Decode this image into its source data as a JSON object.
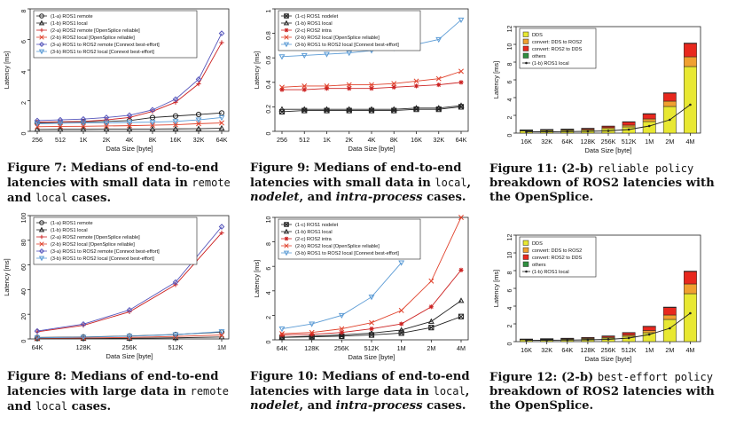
{
  "chart_data": [
    {
      "id": "fig7",
      "type": "line",
      "ylabel": "Latency [ms]",
      "xlabel": "Data Size [byte]",
      "categories": [
        "256",
        "512",
        "1K",
        "2K",
        "4K",
        "8K",
        "16K",
        "32K",
        "64K"
      ],
      "ylim": [
        0,
        8
      ],
      "yticks": [
        0,
        2,
        4,
        6,
        8
      ],
      "legend_position": "top-left",
      "series": [
        {
          "name": "(1-a) ROS1 remote",
          "marker": "o",
          "color": "#222222",
          "values": [
            0.55,
            0.6,
            0.62,
            0.65,
            0.7,
            0.9,
            1.0,
            1.1,
            1.2
          ]
        },
        {
          "name": "(1-b) ROS1 local",
          "marker": "^",
          "color": "#222222",
          "values": [
            0.12,
            0.13,
            0.13,
            0.14,
            0.14,
            0.15,
            0.16,
            0.17,
            0.2
          ]
        },
        {
          "name": "(2-a) ROS2 remote [OpenSplice reliable]",
          "marker": "+",
          "color": "#cc2222",
          "values": [
            0.6,
            0.62,
            0.65,
            0.75,
            0.9,
            1.3,
            1.9,
            3.1,
            5.8
          ]
        },
        {
          "name": "(2-b) ROS2 local [OpenSplice reliable]",
          "marker": "x",
          "color": "#e0402a",
          "values": [
            0.3,
            0.32,
            0.33,
            0.35,
            0.37,
            0.4,
            0.43,
            0.5,
            0.55
          ]
        },
        {
          "name": "(3-a) ROS1 to ROS2 remote [Connext best-effort]",
          "marker": "d",
          "color": "#5555bb",
          "values": [
            0.7,
            0.75,
            0.8,
            0.9,
            1.05,
            1.4,
            2.1,
            3.4,
            6.4
          ]
        },
        {
          "name": "(3-b) ROS1 to ROS2 local [Connext best-effort]",
          "marker": "v",
          "color": "#5b9bd5",
          "values": [
            0.5,
            0.52,
            0.55,
            0.55,
            0.58,
            0.6,
            0.65,
            0.75,
            0.9
          ]
        }
      ]
    },
    {
      "id": "fig8",
      "type": "line",
      "ylabel": "Latency [ms]",
      "xlabel": "Data Size [byte]",
      "categories": [
        "64K",
        "128K",
        "256K",
        "512K",
        "1M"
      ],
      "ylim": [
        0,
        100
      ],
      "yticks": [
        0,
        20,
        40,
        60,
        80,
        100
      ],
      "legend_position": "top-left",
      "series": [
        {
          "name": "(1-a) ROS1 remote",
          "marker": "o",
          "color": "#222222",
          "values": [
            1.2,
            1.6,
            2.4,
            3.6,
            5.5
          ]
        },
        {
          "name": "(1-b) ROS1 local",
          "marker": "^",
          "color": "#222222",
          "values": [
            0.2,
            0.3,
            0.5,
            0.9,
            1.6
          ]
        },
        {
          "name": "(2-a) ROS2 remote [OpenSplice reliable]",
          "marker": "+",
          "color": "#cc2222",
          "values": [
            5.8,
            11,
            22,
            44,
            86
          ]
        },
        {
          "name": "(2-b) ROS2 local [OpenSplice reliable]",
          "marker": "x",
          "color": "#e0402a",
          "values": [
            0.55,
            0.8,
            1.2,
            2.0,
            3.2
          ]
        },
        {
          "name": "(3-a) ROS1 to ROS2 remote [Connext best-effort]",
          "marker": "d",
          "color": "#5555bb",
          "values": [
            6.4,
            12,
            23.5,
            46,
            91
          ]
        },
        {
          "name": "(3-b) ROS1 to ROS2 local [Connext best-effort]",
          "marker": "v",
          "color": "#5b9bd5",
          "values": [
            0.9,
            1.4,
            2.2,
            3.5,
            6.0
          ]
        }
      ]
    },
    {
      "id": "fig9",
      "type": "line",
      "ylabel": "Latency [ms]",
      "xlabel": "Data Size [byte]",
      "categories": [
        "256",
        "512",
        "1K",
        "2K",
        "4K",
        "8K",
        "16K",
        "32K",
        "64K"
      ],
      "ylim": [
        0,
        1.0
      ],
      "yticks": [
        0,
        0.2,
        0.4,
        0.6,
        0.8,
        1.0
      ],
      "legend_position": "top-left",
      "series": [
        {
          "name": "(1-c) ROS1 nodelet",
          "marker": "s",
          "color": "#222222",
          "values": [
            0.16,
            0.17,
            0.17,
            0.17,
            0.17,
            0.17,
            0.18,
            0.18,
            0.2
          ]
        },
        {
          "name": "(1-b) ROS1 local",
          "marker": "^",
          "color": "#222222",
          "values": [
            0.18,
            0.18,
            0.18,
            0.18,
            0.18,
            0.18,
            0.19,
            0.19,
            0.21
          ]
        },
        {
          "name": "(2-c) ROS2 intra",
          "marker": "*",
          "color": "#cc2222",
          "values": [
            0.34,
            0.34,
            0.35,
            0.35,
            0.35,
            0.36,
            0.37,
            0.38,
            0.4
          ]
        },
        {
          "name": "(2-b) ROS2 local [OpenSplice reliable]",
          "marker": "x",
          "color": "#e0402a",
          "values": [
            0.36,
            0.37,
            0.37,
            0.38,
            0.38,
            0.39,
            0.41,
            0.43,
            0.49
          ]
        },
        {
          "name": "(3-b) ROS1 to ROS2 local [Connext best-effort]",
          "marker": "v",
          "color": "#5b9bd5",
          "values": [
            0.61,
            0.62,
            0.63,
            0.64,
            0.66,
            0.68,
            0.71,
            0.75,
            0.91
          ]
        }
      ]
    },
    {
      "id": "fig10",
      "type": "line",
      "ylabel": "Latency [ms]",
      "xlabel": "Data Size [byte]",
      "categories": [
        "64K",
        "128K",
        "256K",
        "512K",
        "1M",
        "2M",
        "4M"
      ],
      "ylim": [
        0,
        10
      ],
      "yticks": [
        0,
        2,
        4,
        6,
        8,
        10
      ],
      "legend_position": "top-left",
      "series": [
        {
          "name": "(1-c) ROS1 nodelet",
          "marker": "s",
          "color": "#222222",
          "values": [
            0.2,
            0.25,
            0.3,
            0.4,
            0.55,
            1.0,
            1.9
          ]
        },
        {
          "name": "(1-b) ROS1 local",
          "marker": "^",
          "color": "#222222",
          "values": [
            0.21,
            0.3,
            0.4,
            0.55,
            0.8,
            1.5,
            3.2
          ]
        },
        {
          "name": "(2-c) ROS2 intra",
          "marker": "*",
          "color": "#cc2222",
          "values": [
            0.4,
            0.45,
            0.6,
            0.9,
            1.3,
            2.7,
            5.7
          ]
        },
        {
          "name": "(2-b) ROS2 local [OpenSplice reliable]",
          "marker": "x",
          "color": "#e0402a",
          "values": [
            0.5,
            0.6,
            0.9,
            1.4,
            2.4,
            4.8,
            10
          ]
        },
        {
          "name": "(3-b) ROS1 to ROS2 local [Connext best-effort]",
          "marker": "v",
          "color": "#5b9bd5",
          "values": [
            0.9,
            1.3,
            2.0,
            3.5,
            6.3,
            null,
            null
          ]
        }
      ]
    },
    {
      "id": "fig11",
      "type": "bar",
      "stacked": true,
      "ylabel": "Latency [ms]",
      "xlabel": "Data Size [byte]",
      "categories": [
        "16K",
        "32K",
        "64K",
        "128K",
        "256K",
        "512K",
        "1M",
        "2M",
        "4M"
      ],
      "ylim": [
        0,
        12
      ],
      "yticks": [
        0,
        2,
        4,
        6,
        8,
        10,
        12
      ],
      "legend_position": "top-left",
      "series": [
        {
          "name": "DDS",
          "color": "#e8e832",
          "values": [
            0.25,
            0.28,
            0.3,
            0.35,
            0.5,
            0.7,
            1.3,
            3.0,
            7.5
          ]
        },
        {
          "name": "convert: DDS to ROS2",
          "color": "#f0a030",
          "values": [
            0.05,
            0.06,
            0.07,
            0.08,
            0.12,
            0.2,
            0.3,
            0.6,
            1.1
          ]
        },
        {
          "name": "convert: ROS2 to DDS",
          "color": "#e8281e",
          "values": [
            0.05,
            0.06,
            0.07,
            0.1,
            0.15,
            0.35,
            0.55,
            0.9,
            1.5
          ]
        },
        {
          "name": "others",
          "color": "#2f8f3f",
          "values": [
            0.02,
            0.02,
            0.02,
            0.02,
            0.03,
            0.04,
            0.05,
            0.05,
            0.05
          ]
        }
      ],
      "line_series": {
        "name": "(1-b) ROS1 local",
        "marker": "o",
        "color": "#222222",
        "values": [
          0.14,
          0.15,
          0.17,
          0.2,
          0.25,
          0.4,
          0.8,
          1.5,
          3.2
        ]
      }
    },
    {
      "id": "fig12",
      "type": "bar",
      "stacked": true,
      "ylabel": "Latency [ms]",
      "xlabel": "Data Size [byte]",
      "categories": [
        "16K",
        "32K",
        "64K",
        "128K",
        "256K",
        "512K",
        "1M",
        "2M",
        "4M"
      ],
      "ylim": [
        0,
        12
      ],
      "yticks": [
        0,
        2,
        4,
        6,
        8,
        10,
        12
      ],
      "legend_position": "top-left",
      "series": [
        {
          "name": "DDS",
          "color": "#e8e832",
          "values": [
            0.2,
            0.22,
            0.25,
            0.3,
            0.4,
            0.6,
            1.0,
            2.5,
            5.4
          ]
        },
        {
          "name": "convert: DDS to ROS2",
          "color": "#f0a030",
          "values": [
            0.04,
            0.05,
            0.06,
            0.08,
            0.1,
            0.15,
            0.25,
            0.5,
            1.1
          ]
        },
        {
          "name": "convert: ROS2 to DDS",
          "color": "#e8281e",
          "values": [
            0.04,
            0.05,
            0.06,
            0.08,
            0.12,
            0.25,
            0.45,
            0.85,
            1.4
          ]
        },
        {
          "name": "others",
          "color": "#2f8f3f",
          "values": [
            0.02,
            0.02,
            0.02,
            0.02,
            0.03,
            0.03,
            0.04,
            0.05,
            0.05
          ]
        }
      ],
      "line_series": {
        "name": "(1-b) ROS1 local",
        "marker": "o",
        "color": "#222222",
        "values": [
          0.14,
          0.15,
          0.17,
          0.2,
          0.25,
          0.4,
          0.8,
          1.5,
          3.2
        ]
      }
    }
  ],
  "captions": {
    "fig7": {
      "label": "Figure 7:",
      "t1": "Medians of end-to-end",
      "t2": "latencies with small data in ",
      "m1": "remote",
      "t3": "and ",
      "m2": "local",
      "t4": " cases."
    },
    "fig8": {
      "label": "Figure 8:",
      "t1": "Medians of end-to-end",
      "t2": "latencies with large data in ",
      "m1": "remote",
      "t3": "and ",
      "m2": "local",
      "t4": " cases."
    },
    "fig9": {
      "label": "Figure 9:",
      "t1": "Medians of end-to-end",
      "t2": "latencies with small data in ",
      "m1": "local",
      "t2b": ",",
      "i1": "nodelet",
      "t3": ", and ",
      "i2": "intra-process",
      "t4": " cases."
    },
    "fig10": {
      "label": "Figure 10:",
      "t1": "Medians of end-to-end",
      "t2": "latencies with large data in ",
      "m1": "local",
      "t2b": ",",
      "i1": "nodelet",
      "t3": ", and ",
      "i2": "intra-process",
      "t4": " cases."
    },
    "fig11": {
      "label": "Figure 11:",
      "t1": "(2-b) ",
      "m1": "reliable policy",
      "t2": "breakdown of ROS2 latencies with",
      "t3": "the OpenSplice."
    },
    "fig12": {
      "label": "Figure 12:",
      "t1": "(2-b) ",
      "m1": "best-effort policy",
      "t2": "breakdown of ROS2 latencies with",
      "t3": "the OpenSplice."
    }
  }
}
